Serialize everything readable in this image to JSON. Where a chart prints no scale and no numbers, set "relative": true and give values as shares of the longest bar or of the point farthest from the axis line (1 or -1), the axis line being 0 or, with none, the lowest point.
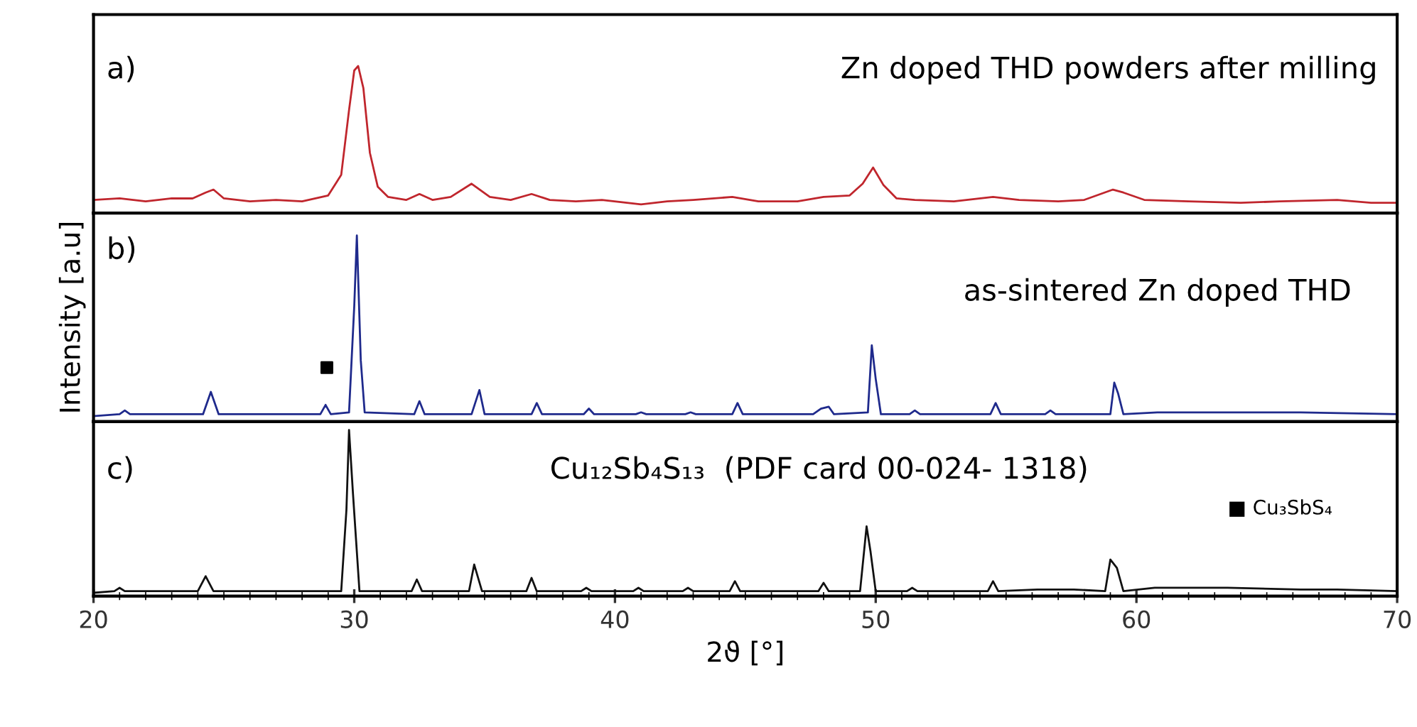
{
  "chart_data": [
    {
      "type": "line",
      "relative": true,
      "xlim": [
        20,
        70
      ],
      "tick_labels": false,
      "annotations": [
        "a)",
        "Zn doped THD powders after milling"
      ],
      "series": [
        {
          "color": "#c0262d",
          "x": [
            20,
            21,
            22,
            23,
            23.8,
            24.3,
            24.6,
            25.0,
            26,
            27,
            28,
            29.0,
            29.5,
            29.8,
            30.0,
            30.15,
            30.35,
            30.6,
            30.9,
            31.3,
            32.0,
            32.5,
            33.0,
            33.7,
            34.5,
            35.2,
            36.0,
            36.8,
            37.5,
            38.5,
            39.5,
            41,
            42,
            43,
            44.5,
            45.5,
            47,
            48,
            49.0,
            49.5,
            49.9,
            50.3,
            50.8,
            51.5,
            53,
            54.5,
            55.5,
            57,
            58,
            59.1,
            59.5,
            60.3,
            62,
            64,
            65.5,
            67.7,
            69,
            70
          ],
          "values": [
            0.09,
            0.1,
            0.08,
            0.1,
            0.1,
            0.14,
            0.16,
            0.1,
            0.08,
            0.09,
            0.08,
            0.12,
            0.26,
            0.7,
            0.97,
            1.0,
            0.85,
            0.41,
            0.18,
            0.11,
            0.09,
            0.13,
            0.09,
            0.11,
            0.2,
            0.11,
            0.09,
            0.13,
            0.09,
            0.08,
            0.09,
            0.06,
            0.08,
            0.09,
            0.11,
            0.08,
            0.08,
            0.11,
            0.12,
            0.2,
            0.31,
            0.19,
            0.1,
            0.09,
            0.08,
            0.11,
            0.09,
            0.08,
            0.09,
            0.16,
            0.14,
            0.09,
            0.08,
            0.07,
            0.08,
            0.09,
            0.07,
            0.07
          ]
        }
      ]
    },
    {
      "type": "line",
      "relative": true,
      "xlim": [
        20,
        70
      ],
      "tick_labels": false,
      "ylabel": "Intensity [a.u]",
      "annotations": [
        "b)",
        "as-sintered Zn doped THD"
      ],
      "series": [
        {
          "color": "#1f2a8c",
          "x": [
            20,
            21.0,
            21.2,
            21.4,
            24.2,
            24.5,
            24.8,
            28.7,
            28.9,
            29.1,
            29.8,
            30.0,
            30.1,
            30.25,
            30.4,
            32.3,
            32.5,
            32.7,
            34.5,
            34.8,
            35.0,
            36.8,
            37.0,
            37.2,
            38.8,
            39.0,
            39.2,
            40.8,
            41.0,
            41.2,
            42.7,
            42.9,
            43.1,
            44.5,
            44.7,
            44.9,
            47.6,
            47.9,
            48.2,
            48.4,
            49.7,
            49.85,
            50.0,
            50.2,
            51.3,
            51.5,
            51.7,
            54.4,
            54.6,
            54.8,
            56.5,
            56.7,
            56.9,
            59.0,
            59.15,
            59.3,
            59.5,
            60.8,
            62.3,
            63.7,
            66.3,
            70
          ],
          "values": [
            0.03,
            0.04,
            0.06,
            0.04,
            0.04,
            0.16,
            0.04,
            0.04,
            0.09,
            0.04,
            0.05,
            0.62,
            1.0,
            0.33,
            0.05,
            0.04,
            0.11,
            0.04,
            0.04,
            0.17,
            0.04,
            0.04,
            0.1,
            0.04,
            0.04,
            0.07,
            0.04,
            0.04,
            0.05,
            0.04,
            0.04,
            0.05,
            0.04,
            0.04,
            0.1,
            0.04,
            0.04,
            0.07,
            0.08,
            0.04,
            0.05,
            0.41,
            0.23,
            0.04,
            0.04,
            0.06,
            0.04,
            0.04,
            0.1,
            0.04,
            0.04,
            0.06,
            0.04,
            0.04,
            0.21,
            0.15,
            0.04,
            0.05,
            0.05,
            0.05,
            0.05,
            0.04
          ]
        },
        {
          "type": "scatter",
          "marker": "square",
          "color": "#000000",
          "x": [
            28.95
          ],
          "values": [
            0.29
          ]
        }
      ]
    },
    {
      "type": "line",
      "relative": true,
      "xlim": [
        20,
        70
      ],
      "xticks": [
        20,
        30,
        40,
        50,
        60,
        70
      ],
      "tick_labels": "x",
      "xlabel": "2ϑ [°]",
      "annotations": [
        "c)",
        "Cu₁₂Sb₄S₁₃  (PDF card 00-024- 1318)",
        "■ Cu₃SbS₄"
      ],
      "series": [
        {
          "color": "#111111",
          "x": [
            20,
            20.8,
            21.0,
            21.2,
            24.0,
            24.3,
            24.6,
            29.5,
            29.7,
            29.8,
            29.95,
            30.2,
            32.2,
            32.4,
            32.6,
            34.4,
            34.6,
            34.9,
            36.6,
            36.8,
            37.0,
            38.7,
            38.9,
            39.1,
            40.7,
            40.9,
            41.1,
            42.6,
            42.8,
            43.0,
            44.4,
            44.6,
            44.8,
            47.8,
            48.0,
            48.2,
            49.4,
            49.65,
            49.8,
            50.0,
            51.2,
            51.4,
            51.6,
            54.3,
            54.5,
            54.7,
            56.2,
            57.6,
            58.8,
            59.0,
            59.25,
            59.5,
            60.7,
            62.1,
            63.5,
            66.3,
            67.7,
            70
          ],
          "values": [
            0.02,
            0.03,
            0.05,
            0.03,
            0.03,
            0.12,
            0.03,
            0.03,
            0.52,
            1.0,
            0.62,
            0.03,
            0.03,
            0.1,
            0.03,
            0.03,
            0.19,
            0.03,
            0.03,
            0.11,
            0.03,
            0.03,
            0.05,
            0.03,
            0.03,
            0.05,
            0.03,
            0.03,
            0.05,
            0.03,
            0.03,
            0.09,
            0.03,
            0.03,
            0.08,
            0.03,
            0.03,
            0.42,
            0.27,
            0.03,
            0.03,
            0.05,
            0.03,
            0.03,
            0.09,
            0.03,
            0.04,
            0.04,
            0.03,
            0.22,
            0.17,
            0.03,
            0.05,
            0.05,
            0.05,
            0.04,
            0.04,
            0.03
          ]
        }
      ]
    }
  ]
}
